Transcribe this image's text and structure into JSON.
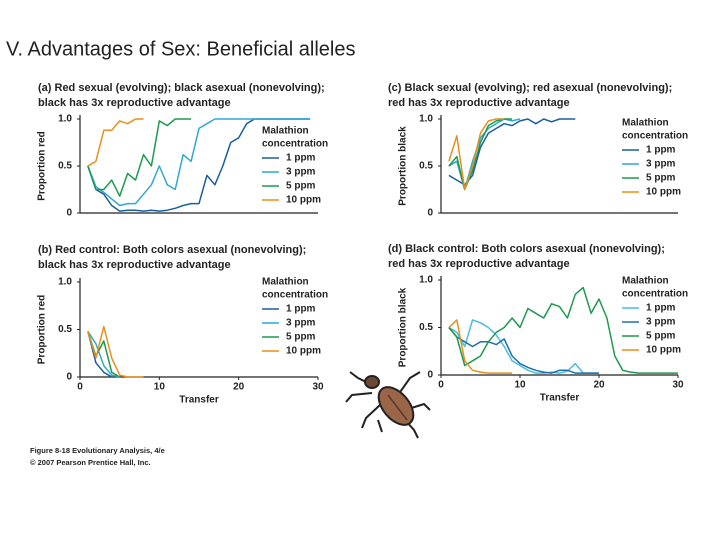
{
  "title": "V. Advantages of Sex: Beneficial alleles",
  "caption": [
    "Figure 8-18 Evolutionary Analysis, 4/e",
    "© 2007 Pearson Prentice Hall, Inc."
  ],
  "chart_data": [
    {
      "type": "line",
      "title": [
        "(a) Red sexual (evolving); black asexual (nonevolving);",
        "black has 3x reproductive advantage"
      ],
      "ylabel": "Proportion red",
      "legend_title": [
        "Malathion",
        "concentration"
      ],
      "xlim": [
        0,
        30
      ],
      "ylim": [
        0,
        1
      ],
      "yticks": [
        0,
        0.5,
        {
          "value": 1,
          "label": "1.0"
        }
      ],
      "x": [
        1,
        2,
        3,
        4,
        5,
        6,
        7,
        8,
        9,
        10,
        11,
        12,
        13,
        14,
        15,
        16,
        17,
        18,
        19,
        20,
        21,
        22,
        23,
        24,
        25,
        26,
        27,
        28,
        29
      ],
      "series": [
        {
          "name": "1 ppm",
          "color": "#1b5e9e",
          "values": [
            0.5,
            0.25,
            0.2,
            0.08,
            0.02,
            0.03,
            0.03,
            0.02,
            0.03,
            0.02,
            0.03,
            0.05,
            0.08,
            0.1,
            0.1,
            0.4,
            0.3,
            0.5,
            0.75,
            0.8,
            0.95,
            1,
            1,
            1,
            1,
            1,
            1,
            1,
            1
          ]
        },
        {
          "name": "3 ppm",
          "color": "#2fa8d5",
          "values": [
            0.5,
            0.28,
            0.22,
            0.15,
            0.08,
            0.1,
            0.1,
            0.2,
            0.3,
            0.5,
            0.3,
            0.25,
            0.62,
            0.55,
            0.9,
            0.95,
            1,
            1,
            1,
            1,
            1,
            1,
            1,
            1,
            1,
            1,
            1,
            1,
            1
          ]
        },
        {
          "name": "5 ppm",
          "color": "#1d9a4e",
          "values": [
            0.5,
            0.25,
            0.25,
            0.35,
            0.18,
            0.42,
            0.35,
            0.62,
            0.5,
            0.98,
            0.93,
            1,
            1,
            1,
            null,
            null,
            null,
            null,
            null,
            null,
            null,
            null,
            null,
            null,
            null,
            null,
            null,
            null,
            null
          ]
        },
        {
          "name": "10 ppm",
          "color": "#e88f1f",
          "values": [
            0.5,
            0.55,
            0.88,
            0.88,
            0.98,
            0.95,
            1,
            1,
            null,
            null,
            null,
            null,
            null,
            null,
            null,
            null,
            null,
            null,
            null,
            null,
            null,
            null,
            null,
            null,
            null,
            null,
            null,
            null,
            null
          ]
        }
      ]
    },
    {
      "type": "line",
      "title": [
        "(c) Black sexual (evolving); red asexual (nonevolving);",
        "red has 3x reproductive advantage"
      ],
      "ylabel": "Proportion black",
      "legend_title": [
        "Malathion",
        "concentration"
      ],
      "xlim": [
        0,
        30
      ],
      "ylim": [
        0,
        1
      ],
      "yticks": [
        0,
        0.5,
        {
          "value": 1,
          "label": "1.0"
        }
      ],
      "x": [
        1,
        2,
        3,
        4,
        5,
        6,
        7,
        8,
        9,
        10,
        11,
        12,
        13,
        14,
        15,
        16,
        17
      ],
      "series": [
        {
          "name": "1 ppm",
          "color": "#1b5e9e",
          "values": [
            0.4,
            0.35,
            0.3,
            0.4,
            0.7,
            0.85,
            0.9,
            0.95,
            0.93,
            0.98,
            1,
            0.95,
            1,
            0.97,
            1,
            1,
            1
          ]
        },
        {
          "name": "3 ppm",
          "color": "#2fa8d5",
          "values": [
            0.5,
            0.55,
            0.25,
            0.55,
            0.8,
            0.9,
            0.95,
            1,
            0.98,
            1,
            null,
            null,
            null,
            null,
            null,
            null,
            null
          ]
        },
        {
          "name": "5 ppm",
          "color": "#1d9a4e",
          "values": [
            0.5,
            0.6,
            0.25,
            0.45,
            0.75,
            0.93,
            0.98,
            1,
            1,
            null,
            null,
            null,
            null,
            null,
            null,
            null,
            null
          ]
        },
        {
          "name": "10 ppm",
          "color": "#e88f1f",
          "values": [
            0.55,
            0.82,
            0.25,
            0.5,
            0.85,
            0.98,
            1,
            1,
            null,
            null,
            null,
            null,
            null,
            null,
            null,
            null,
            null
          ]
        }
      ]
    },
    {
      "type": "line",
      "title": [
        "(b) Red control: Both colors asexual (nonevolving);",
        "black has 3x reproductive advantage"
      ],
      "ylabel": "Proportion red",
      "xlabel": "Transfer",
      "legend_title": [
        "Malathion",
        "concentration"
      ],
      "xlim": [
        0,
        30
      ],
      "xticks": [
        0,
        10,
        20,
        30
      ],
      "ylim": [
        0,
        1
      ],
      "yticks": [
        0,
        0.5,
        {
          "value": 1,
          "label": "1.0"
        }
      ],
      "x": [
        1,
        2,
        3,
        4,
        5,
        6,
        7,
        8
      ],
      "series": [
        {
          "name": "1 ppm",
          "color": "#1b5e9e",
          "values": [
            0.48,
            0.15,
            0.05,
            0,
            null,
            null,
            null,
            null
          ]
        },
        {
          "name": "3 ppm",
          "color": "#2fa8d5",
          "values": [
            0.48,
            0.35,
            0.12,
            0.02,
            0,
            null,
            null,
            null
          ]
        },
        {
          "name": "5 ppm",
          "color": "#1d9a4e",
          "values": [
            0.48,
            0.22,
            0.38,
            0.05,
            0,
            null,
            null,
            null
          ]
        },
        {
          "name": "10 ppm",
          "color": "#e88f1f",
          "values": [
            0.48,
            0.2,
            0.53,
            0.2,
            0.02,
            0,
            0,
            0
          ]
        }
      ]
    },
    {
      "type": "line",
      "title": [
        "(d) Black control: Both colors asexual (nonevolving);",
        "red has 3x reproductive advantage"
      ],
      "ylabel": "Proportion black",
      "xlabel": "Transfer",
      "legend_title": [
        "Malathion",
        "concentration"
      ],
      "xlim": [
        0,
        30
      ],
      "xticks": [
        0,
        10,
        20,
        30
      ],
      "ylim": [
        0,
        1
      ],
      "yticks": [
        0,
        0.5,
        {
          "value": 1,
          "label": "1.0"
        }
      ],
      "x": [
        1,
        2,
        3,
        4,
        5,
        6,
        7,
        8,
        9,
        10,
        11,
        12,
        13,
        14,
        15,
        16,
        17,
        18,
        19,
        20,
        21,
        22,
        23,
        24,
        25,
        26,
        27,
        28,
        29,
        30
      ],
      "series": [
        {
          "name": "1 ppm",
          "color": "#4bbde0",
          "values": [
            0.5,
            0.45,
            0.3,
            0.58,
            0.55,
            0.5,
            0.42,
            0.3,
            0.15,
            0.1,
            0.05,
            0.02,
            0.02,
            0.03,
            0.02,
            0.04,
            0.12,
            0.02,
            0.02,
            0.02,
            null,
            null,
            null,
            null,
            null,
            null,
            null,
            null,
            null,
            null
          ]
        },
        {
          "name": "3 ppm",
          "color": "#1e6fb0",
          "values": [
            0.5,
            0.4,
            0.35,
            0.3,
            0.35,
            0.35,
            0.32,
            0.38,
            0.2,
            0.12,
            0.08,
            0.05,
            0.03,
            0.02,
            0.05,
            0.05,
            0.02,
            0.02,
            0.02,
            0.02,
            null,
            null,
            null,
            null,
            null,
            null,
            null,
            null,
            null,
            null
          ]
        },
        {
          "name": "5 ppm",
          "color": "#1d9a4e",
          "values": [
            0.5,
            0.4,
            0.1,
            0.15,
            0.2,
            0.35,
            0.45,
            0.5,
            0.6,
            0.5,
            0.7,
            0.65,
            0.6,
            0.75,
            0.72,
            0.6,
            0.85,
            0.92,
            0.65,
            0.8,
            0.6,
            0.2,
            0.05,
            0.03,
            0.02,
            0.02,
            0.02,
            0.02,
            0.02,
            0.02
          ]
        },
        {
          "name": "10 ppm",
          "color": "#e88f1f",
          "values": [
            0.5,
            0.58,
            0.15,
            0.05,
            0.03,
            0.02,
            0.02,
            0.02,
            0.02,
            null,
            null,
            null,
            null,
            null,
            null,
            null,
            null,
            null,
            null,
            null,
            null,
            null,
            null,
            null,
            null,
            null,
            null,
            null,
            null,
            null
          ]
        }
      ]
    }
  ]
}
